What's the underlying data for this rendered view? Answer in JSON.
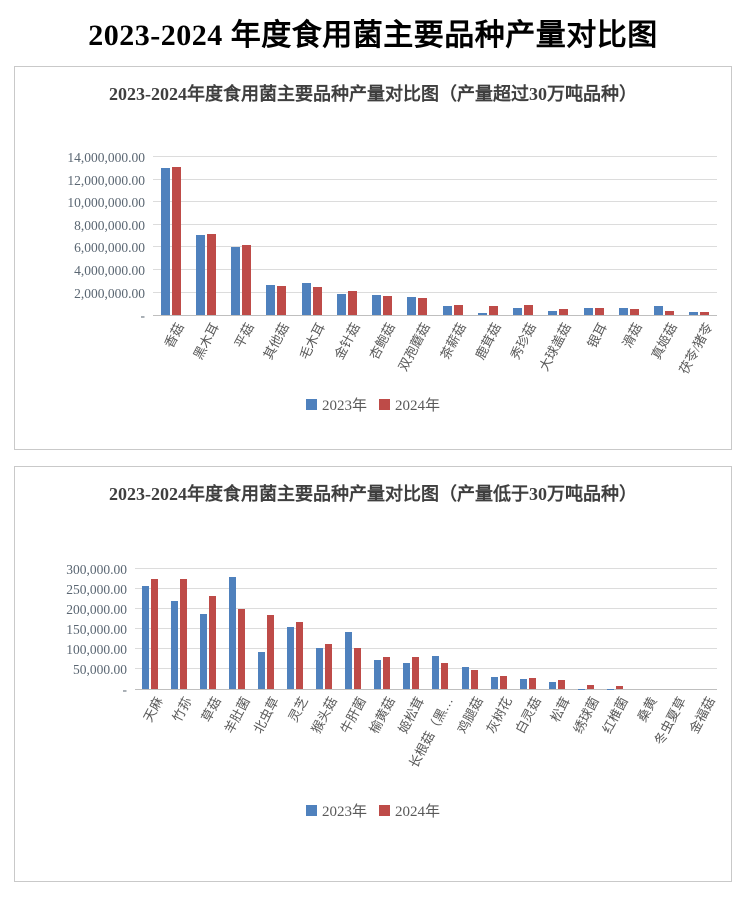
{
  "page_title": "2023-2024 年度食用菌主要品种产量对比图",
  "colors": {
    "series_2023": "#4F81BD",
    "series_2024": "#BE4B48",
    "gridline": "#DCDCDC",
    "axis_line": "#BFBFBF",
    "tick_text": "#5A6672",
    "label_text": "#595959",
    "title_text": "#3F3F3F"
  },
  "chart_data": [
    {
      "type": "bar",
      "title": "2023-2024年度食用菌主要品种产量对比图（产量超过30万吨品种）",
      "ylim": [
        0,
        14000000
      ],
      "grid": true,
      "legend_position": "bottom",
      "yticks": [
        {
          "label": "14,000,000.00",
          "value": 14000000
        },
        {
          "label": "12,000,000.00",
          "value": 12000000
        },
        {
          "label": "10,000,000.00",
          "value": 10000000
        },
        {
          "label": "8,000,000.00",
          "value": 8000000
        },
        {
          "label": "6,000,000.00",
          "value": 6000000
        },
        {
          "label": "4,000,000.00",
          "value": 4000000
        },
        {
          "label": "2,000,000.00",
          "value": 2000000
        },
        {
          "label": "-",
          "value": 0
        }
      ],
      "categories": [
        "香菇",
        "黑木耳",
        "平菇",
        "其他菇",
        "毛木耳",
        "金针菇",
        "杏鲍菇",
        "双孢蘑菇",
        "茶薪菇",
        "鹿茸菇",
        "秀珍菇",
        "大球盖菇",
        "银耳",
        "滑菇",
        "真姬菇",
        "茯苓/猪苓"
      ],
      "series": [
        {
          "name": "2023年",
          "color": "#4F81BD",
          "values": [
            13050000,
            7100000,
            6050000,
            2700000,
            2850000,
            1900000,
            1750000,
            1600000,
            850000,
            160000,
            670000,
            400000,
            600000,
            600000,
            800000,
            290000
          ]
        },
        {
          "name": "2024年",
          "color": "#BE4B48",
          "values": [
            13150000,
            7150000,
            6250000,
            2600000,
            2450000,
            2100000,
            1720000,
            1520000,
            860000,
            800000,
            870000,
            570000,
            600000,
            580000,
            400000,
            260000
          ]
        }
      ]
    },
    {
      "type": "bar",
      "title": "2023-2024年度食用菌主要品种产量对比图（产量低于30万吨品种）",
      "ylim": [
        0,
        300000
      ],
      "grid": true,
      "legend_position": "bottom",
      "yticks": [
        {
          "label": "300,000.00",
          "value": 300000
        },
        {
          "label": "250,000.00",
          "value": 250000
        },
        {
          "label": "200,000.00",
          "value": 200000
        },
        {
          "label": "150,000.00",
          "value": 150000
        },
        {
          "label": "100,000.00",
          "value": 100000
        },
        {
          "label": "50,000.00",
          "value": 50000
        },
        {
          "label": "-",
          "value": 0
        }
      ],
      "categories": [
        "天麻",
        "竹荪",
        "草菇",
        "羊肚菌",
        "北虫草",
        "灵芝",
        "猴头菇",
        "牛肝菌",
        "榆黄菇",
        "姬松茸",
        "长根菇（黑…",
        "鸡腿菇",
        "灰树花",
        "白灵菇",
        "松茸",
        "绣球菌",
        "红椎菌",
        "桑黄",
        "冬虫夏草",
        "金福菇"
      ],
      "series": [
        {
          "name": "2023年",
          "color": "#4F81BD",
          "values": [
            258000,
            220000,
            188000,
            280000,
            92000,
            155000,
            103000,
            143000,
            73000,
            66000,
            83000,
            56000,
            30000,
            25000,
            18000,
            1500,
            800,
            0,
            0,
            0
          ]
        },
        {
          "name": "2024年",
          "color": "#BE4B48",
          "values": [
            275000,
            276000,
            233000,
            201000,
            185000,
            168000,
            112000,
            102000,
            80000,
            80000,
            65000,
            49000,
            34000,
            27000,
            22000,
            11000,
            7000,
            0,
            0,
            0
          ]
        }
      ]
    }
  ]
}
